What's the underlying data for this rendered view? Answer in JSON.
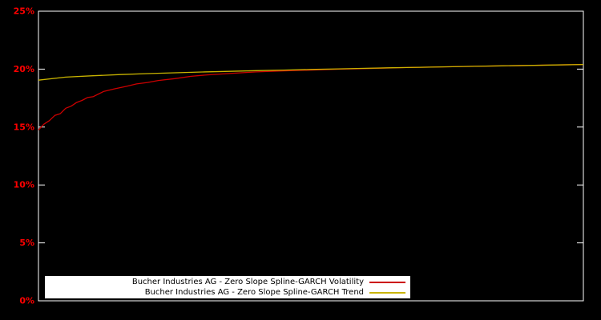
{
  "page": {
    "background_color": "#000000"
  },
  "chart": {
    "border_color": "#ffffff",
    "tick_label_color": "#ff0000",
    "legend_background": "#ffffff",
    "legend_text_color": "#000000"
  },
  "chart_data": {
    "type": "line",
    "title": "",
    "xlabel": "",
    "ylabel": "",
    "xlim": [
      0,
      1
    ],
    "ylim": [
      0,
      25
    ],
    "grid": false,
    "legend_position": "bottom-center-inside",
    "x_tick_labels": [],
    "y_ticks": [
      {
        "value": 0,
        "label": "0%"
      },
      {
        "value": 5,
        "label": "5%"
      },
      {
        "value": 10,
        "label": "10%"
      },
      {
        "value": 15,
        "label": "15%"
      },
      {
        "value": 20,
        "label": "20%"
      },
      {
        "value": 25,
        "label": "25%"
      }
    ],
    "series": [
      {
        "name": "Bucher Industries AG - Zero Slope Spline-GARCH Volatility",
        "color": "#cc0000",
        "points": [
          [
            0.0,
            14.75
          ],
          [
            0.01,
            15.25
          ],
          [
            0.02,
            15.55
          ],
          [
            0.03,
            16.0
          ],
          [
            0.04,
            16.15
          ],
          [
            0.05,
            16.62
          ],
          [
            0.06,
            16.8
          ],
          [
            0.07,
            17.12
          ],
          [
            0.08,
            17.3
          ],
          [
            0.09,
            17.55
          ],
          [
            0.1,
            17.62
          ],
          [
            0.12,
            18.08
          ],
          [
            0.14,
            18.3
          ],
          [
            0.16,
            18.5
          ],
          [
            0.18,
            18.72
          ],
          [
            0.2,
            18.85
          ],
          [
            0.22,
            19.02
          ],
          [
            0.25,
            19.18
          ],
          [
            0.28,
            19.38
          ],
          [
            0.31,
            19.5
          ],
          [
            0.35,
            19.62
          ],
          [
            0.4,
            19.76
          ],
          [
            0.45,
            19.85
          ],
          [
            0.5,
            19.92
          ],
          [
            0.55,
            19.99
          ],
          [
            0.6,
            20.05
          ],
          [
            0.65,
            20.11
          ],
          [
            0.7,
            20.16
          ],
          [
            0.75,
            20.2
          ],
          [
            0.8,
            20.24
          ],
          [
            0.85,
            20.28
          ],
          [
            0.9,
            20.32
          ],
          [
            0.95,
            20.36
          ],
          [
            1.0,
            20.4
          ]
        ]
      },
      {
        "name": "Bucher Industries AG - Zero Slope Spline-GARCH Trend",
        "color": "#c9b400",
        "points": [
          [
            0.0,
            19.05
          ],
          [
            0.05,
            19.31
          ],
          [
            0.1,
            19.43
          ],
          [
            0.15,
            19.53
          ],
          [
            0.2,
            19.61
          ],
          [
            0.25,
            19.68
          ],
          [
            0.3,
            19.75
          ],
          [
            0.35,
            19.81
          ],
          [
            0.4,
            19.87
          ],
          [
            0.45,
            19.92
          ],
          [
            0.5,
            19.97
          ],
          [
            0.55,
            20.02
          ],
          [
            0.6,
            20.07
          ],
          [
            0.65,
            20.12
          ],
          [
            0.7,
            20.16
          ],
          [
            0.75,
            20.2
          ],
          [
            0.8,
            20.24
          ],
          [
            0.85,
            20.28
          ],
          [
            0.9,
            20.32
          ],
          [
            0.95,
            20.36
          ],
          [
            1.0,
            20.4
          ]
        ]
      }
    ]
  }
}
